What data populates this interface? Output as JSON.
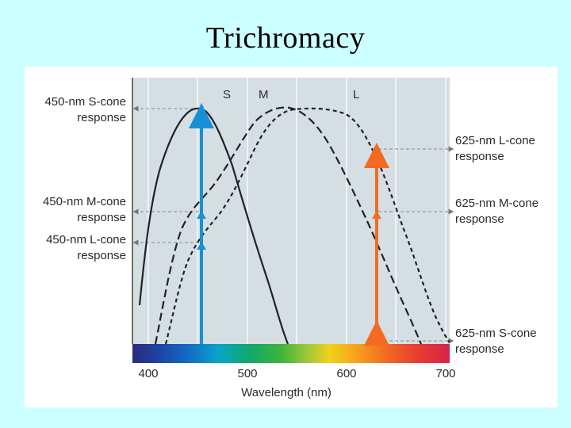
{
  "slide": {
    "title": "Trichromacy"
  },
  "figure": {
    "curve_labels": {
      "s": "S",
      "m": "M",
      "l": "L"
    },
    "left_labels": [
      {
        "line1": "450-nm S-cone",
        "line2": "response"
      },
      {
        "line1": "450-nm M-cone",
        "line2": "response"
      },
      {
        "line1": "450-nm L-cone",
        "line2": "response"
      }
    ],
    "right_labels": [
      {
        "line1": "625-nm L-cone",
        "line2": "response"
      },
      {
        "line1": "625-nm M-cone",
        "line2": "response"
      },
      {
        "line1": "625-nm S-cone",
        "line2": "response"
      }
    ],
    "x_ticks": [
      "400",
      "500",
      "600",
      "700"
    ],
    "x_axis_label": "Wavelength (nm)",
    "colors": {
      "plot_bg": "#d5dfe3",
      "blue_arrow": "#1a8fd6",
      "orange_arrow": "#f26b21",
      "curve": "#222222"
    }
  }
}
